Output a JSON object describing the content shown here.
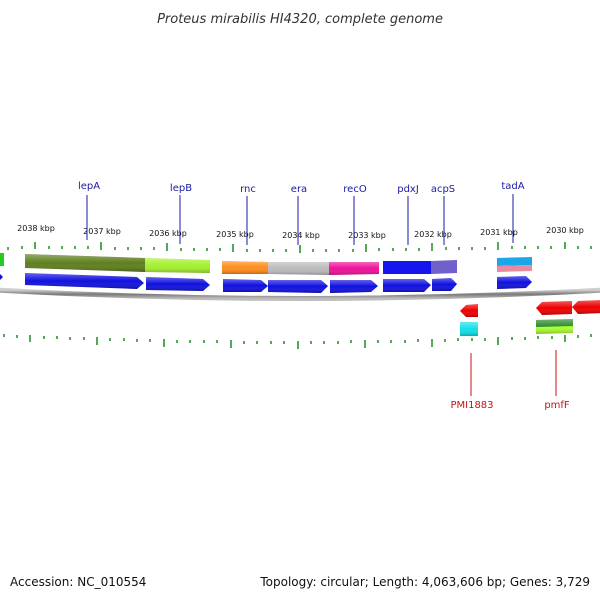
{
  "title": "Proteus mirabilis HI4320, complete genome",
  "footer": {
    "accession": "Accession: NC_010554",
    "summary": "Topology: circular; Length: 4,063,606 bp; Genes: 3,729"
  },
  "colors": {
    "backbone": "#8a8a8a",
    "tick": "#1e8a1e",
    "cds_forward": "#1010e0",
    "cds_reverse": "#ee0000",
    "label_forward": "#1a1aa6",
    "label_reverse": "#cc1111"
  },
  "kbp_labels": [
    "2038 kbp",
    "2037 kbp",
    "2036 kbp",
    "2035 kbp",
    "2034 kbp",
    "2033 kbp",
    "2032 kbp",
    "2031 kbp",
    "2030 kbp"
  ],
  "forward_genes": [
    "lepA",
    "lepB",
    "rnc",
    "era",
    "recO",
    "pdxJ",
    "acpS",
    "tadA"
  ],
  "reverse_genes": [
    "PMI1883",
    "pmfF"
  ]
}
